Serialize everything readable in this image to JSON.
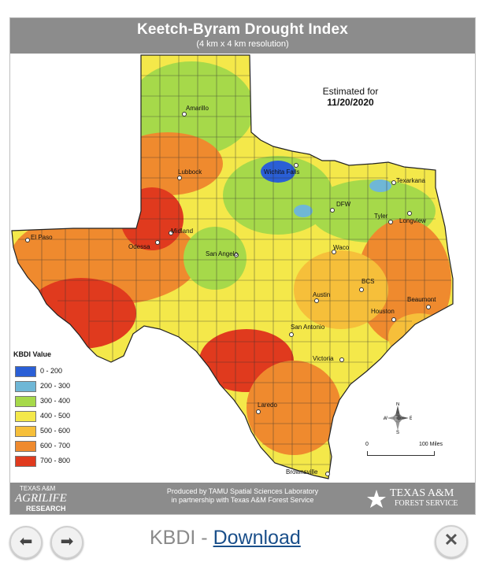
{
  "map": {
    "title": "Keetch-Byram Drought Index",
    "subtitle": "(4 km x 4 km resolution)",
    "estimated_label": "Estimated for",
    "estimated_date": "11/20/2020",
    "legend": {
      "title": "KBDI Value",
      "items": [
        {
          "label": "0 - 200",
          "color": "#2a5fd6"
        },
        {
          "label": "200 - 300",
          "color": "#6fb7d6"
        },
        {
          "label": "300 - 400",
          "color": "#a6d94a"
        },
        {
          "label": "400 - 500",
          "color": "#f4e84a"
        },
        {
          "label": "500 - 600",
          "color": "#f6bf3a"
        },
        {
          "label": "600 - 700",
          "color": "#ef8a2e"
        },
        {
          "label": "700 - 800",
          "color": "#e03a1e"
        }
      ]
    },
    "cities": [
      {
        "name": "Amarillo"
      },
      {
        "name": "Lubbock"
      },
      {
        "name": "Wichita Falls"
      },
      {
        "name": "DFW"
      },
      {
        "name": "Texarkana"
      },
      {
        "name": "Tyler"
      },
      {
        "name": "Longview"
      },
      {
        "name": "El Paso"
      },
      {
        "name": "Midland"
      },
      {
        "name": "Odessa"
      },
      {
        "name": "San Angelo"
      },
      {
        "name": "Waco"
      },
      {
        "name": "BCS"
      },
      {
        "name": "Austin"
      },
      {
        "name": "Beaumont"
      },
      {
        "name": "Houston"
      },
      {
        "name": "San Antonio"
      },
      {
        "name": "Victoria"
      },
      {
        "name": "Laredo"
      },
      {
        "name": "Brownsville"
      }
    ],
    "scale": {
      "start": "0",
      "end": "100 Miles"
    },
    "compass": {
      "n": "N",
      "s": "S",
      "e": "E",
      "w": "W"
    },
    "footer": {
      "credit_line1": "Produced by TAMU Spatial Sciences Laboratory",
      "credit_line2": "in partnership with Texas A&M Forest Service",
      "agrilife_line1": "TEXAS A&M",
      "agrilife_line2": "AGRILIFE",
      "agrilife_line3": "RESEARCH",
      "tamu_line1": "TEXAS A&M",
      "tamu_line2": "FOREST SERVICE"
    }
  },
  "viewer": {
    "caption_prefix": "KBDI - ",
    "download_label": "Download",
    "prev_icon": "arrow-left-icon",
    "next_icon": "arrow-right-icon",
    "close_icon": "close-icon"
  }
}
